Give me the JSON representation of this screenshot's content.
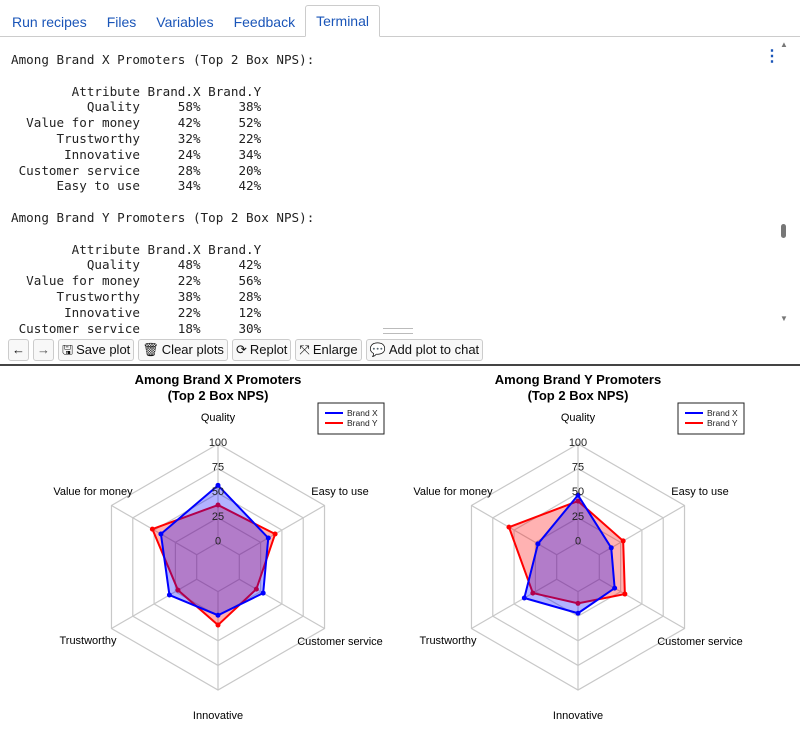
{
  "tabs": [
    "Run recipes",
    "Files",
    "Variables",
    "Feedback",
    "Terminal"
  ],
  "terminal": {
    "lines": [
      "Among Brand X Promoters (Top 2 Box NPS):",
      "",
      "        Attribute Brand.X Brand.Y",
      "          Quality     58%     38%",
      "  Value for money     42%     52%",
      "      Trustworthy     32%     22%",
      "       Innovative     24%     34%",
      " Customer service     28%     20%",
      "      Easy to use     34%     42%",
      "",
      "Among Brand Y Promoters (Top 2 Box NPS):",
      "",
      "        Attribute Brand.X Brand.Y",
      "          Quality     48%     42%",
      "  Value for money     22%     56%",
      "      Trustworthy     38%     28%",
      "       Innovative     22%     12%",
      " Customer service     18%     30%"
    ]
  },
  "toolbar": {
    "back": "←",
    "forward": "→",
    "save": "Save plot",
    "clear": "Clear plots",
    "replot": "Replot",
    "enlarge": "Enlarge",
    "add": "Add plot to chat"
  },
  "chart_data": [
    {
      "type": "radar",
      "title": "Among Brand X Promoters\n(Top 2 Box NPS)",
      "title1": "Among Brand X Promoters",
      "title2": "(Top 2 Box NPS)",
      "axes": [
        "Quality",
        "Value for money",
        "Trustworthy",
        "Innovative",
        "Customer service",
        "Easy to use"
      ],
      "ticks": [
        "0",
        "25",
        "50",
        "75",
        "100"
      ],
      "range": [
        0,
        100
      ],
      "legend_placement": "top-right",
      "series": [
        {
          "name": "Brand X",
          "color": "#0000ff",
          "values": [
            58,
            42,
            32,
            24,
            28,
            34
          ]
        },
        {
          "name": "Brand Y",
          "color": "#ff0000",
          "values": [
            38,
            52,
            22,
            34,
            20,
            42
          ]
        }
      ]
    },
    {
      "type": "radar",
      "title": "Among Brand Y Promoters\n(Top 2 Box NPS)",
      "title1": "Among Brand Y Promoters",
      "title2": "(Top 2 Box NPS)",
      "axes": [
        "Quality",
        "Value for money",
        "Trustworthy",
        "Innovative",
        "Customer service",
        "Easy to use"
      ],
      "ticks": [
        "0",
        "25",
        "50",
        "75",
        "100"
      ],
      "range": [
        0,
        100
      ],
      "legend_placement": "top-right",
      "series": [
        {
          "name": "Brand X",
          "color": "#0000ff",
          "values": [
            48,
            22,
            38,
            22,
            18,
            14
          ]
        },
        {
          "name": "Brand Y",
          "color": "#ff0000",
          "values": [
            42,
            56,
            28,
            12,
            30,
            28
          ]
        }
      ]
    }
  ]
}
